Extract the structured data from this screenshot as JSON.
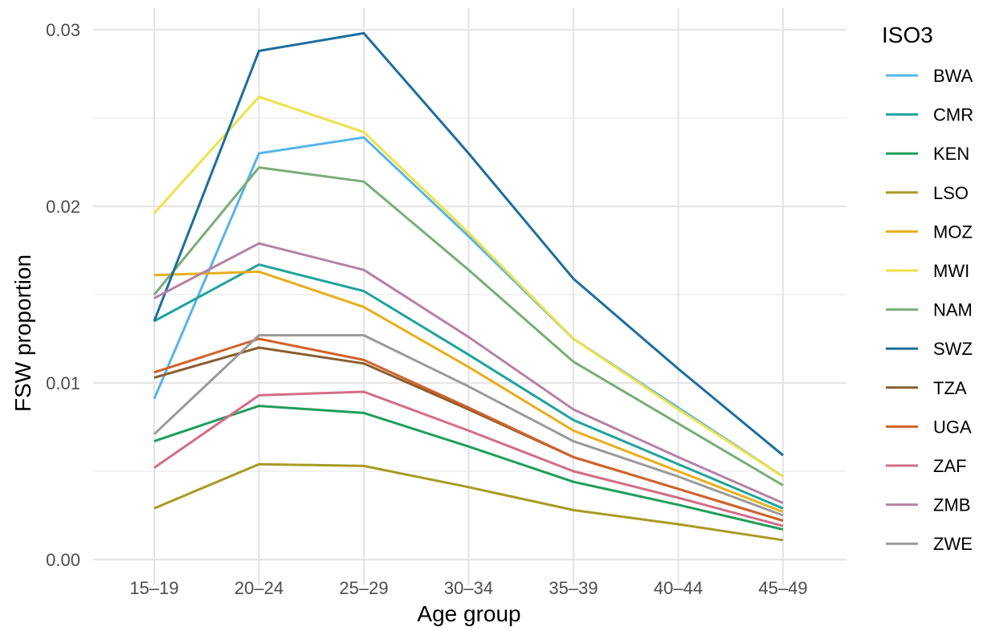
{
  "chart_data": {
    "type": "line",
    "title": "",
    "xlabel": "Age group",
    "ylabel": "FSW proportion",
    "categories": [
      "15–19",
      "20–24",
      "25–29",
      "30–34",
      "35–39",
      "40–44",
      "45–49"
    ],
    "ylim": [
      0,
      0.03
    ],
    "y_ticks": [
      0.0,
      0.01,
      0.02,
      0.03
    ],
    "y_tick_labels": [
      "0.00",
      "0.01",
      "0.02",
      "0.03"
    ],
    "grid": true,
    "legend": {
      "title": "ISO3",
      "position": "right"
    },
    "series": [
      {
        "name": "BWA",
        "color": "#56B4E9",
        "values": [
          0.0091,
          0.023,
          0.0239,
          0.0183,
          0.0125,
          0.0086,
          0.0047
        ]
      },
      {
        "name": "CMR",
        "color": "#20A39E",
        "values": [
          0.0135,
          0.0167,
          0.0152,
          0.0116,
          0.0079,
          0.0054,
          0.0029
        ]
      },
      {
        "name": "KEN",
        "color": "#1F9E5B",
        "values": [
          0.0067,
          0.0087,
          0.0083,
          0.0064,
          0.0044,
          0.0031,
          0.0017
        ]
      },
      {
        "name": "LSO",
        "color": "#A99A22",
        "values": [
          0.0029,
          0.0054,
          0.0053,
          0.0041,
          0.0028,
          0.002,
          0.0011
        ]
      },
      {
        "name": "MOZ",
        "color": "#E8AE1B",
        "values": [
          0.0161,
          0.0163,
          0.0143,
          0.0109,
          0.0073,
          0.005,
          0.0027
        ]
      },
      {
        "name": "MWI",
        "color": "#EFE04A",
        "values": [
          0.0196,
          0.0262,
          0.0242,
          0.0185,
          0.0125,
          0.0085,
          0.0047
        ]
      },
      {
        "name": "NAM",
        "color": "#79AD79",
        "values": [
          0.015,
          0.0222,
          0.0214,
          0.0164,
          0.0112,
          0.0077,
          0.0042
        ]
      },
      {
        "name": "SWZ",
        "color": "#1C6E9E",
        "values": [
          0.0135,
          0.0288,
          0.0298,
          0.023,
          0.0159,
          0.0108,
          0.0059
        ]
      },
      {
        "name": "TZA",
        "color": "#8A5D30",
        "values": [
          0.0103,
          0.012,
          0.0111,
          0.0085,
          0.0058,
          0.004,
          0.0022
        ]
      },
      {
        "name": "UGA",
        "color": "#D2622A",
        "values": [
          0.0106,
          0.0125,
          0.0113,
          0.0086,
          0.0058,
          0.004,
          0.0022
        ]
      },
      {
        "name": "ZAF",
        "color": "#D26D87",
        "values": [
          0.0052,
          0.0093,
          0.0095,
          0.0073,
          0.005,
          0.0035,
          0.0019
        ]
      },
      {
        "name": "ZMB",
        "color": "#B681A5",
        "values": [
          0.0148,
          0.0179,
          0.0164,
          0.0126,
          0.0085,
          0.0058,
          0.0032
        ]
      },
      {
        "name": "ZWE",
        "color": "#9A9A9A",
        "values": [
          0.0071,
          0.0127,
          0.0127,
          0.0098,
          0.0067,
          0.0047,
          0.0025
        ]
      }
    ]
  }
}
